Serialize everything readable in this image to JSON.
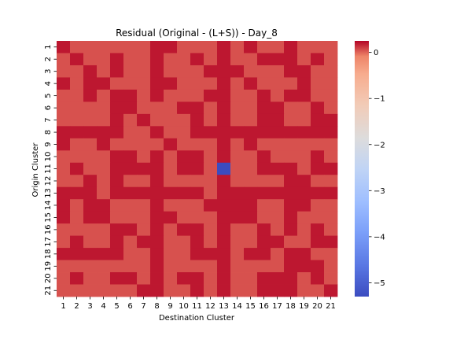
{
  "chart_data": {
    "type": "heatmap",
    "title": "Residual (Original - (L+S)) - Day_8",
    "xlabel": "Destination Cluster",
    "ylabel": "Origin Cluster",
    "x_categories": [
      "1",
      "2",
      "3",
      "4",
      "5",
      "6",
      "7",
      "8",
      "9",
      "10",
      "11",
      "12",
      "13",
      "14",
      "15",
      "16",
      "17",
      "18",
      "19",
      "20",
      "21"
    ],
    "y_categories": [
      "1",
      "2",
      "3",
      "4",
      "5",
      "6",
      "7",
      "8",
      "9",
      "10",
      "11",
      "12",
      "13",
      "14",
      "15",
      "16",
      "17",
      "18",
      "19",
      "20",
      "21"
    ],
    "colormap": "coolwarm",
    "vmin": -5.3,
    "vmax": 0.25,
    "colorbar_ticks": [
      0,
      -1,
      -2,
      -3,
      -4,
      -5
    ],
    "colorbar_tick_labels": [
      "0",
      "−1",
      "−2",
      "−3",
      "−4",
      "−5"
    ],
    "values": [
      [
        0.2,
        0.05,
        0.05,
        0.05,
        0.05,
        0.05,
        0.05,
        0.2,
        0.2,
        0.05,
        0.05,
        0.05,
        0.2,
        0.05,
        0.2,
        0.05,
        0.05,
        0.2,
        0.05,
        0.05,
        0.05
      ],
      [
        0.05,
        0.2,
        0.05,
        0.05,
        0.2,
        0.05,
        0.05,
        0.2,
        0.05,
        0.05,
        0.2,
        0.05,
        0.2,
        0.05,
        0.05,
        0.2,
        0.2,
        0.2,
        0.05,
        0.2,
        0.05
      ],
      [
        0.05,
        0.05,
        0.2,
        0.05,
        0.2,
        0.05,
        0.05,
        0.2,
        0.05,
        0.05,
        0.05,
        0.2,
        0.2,
        0.2,
        0.05,
        0.05,
        0.05,
        0.2,
        0.2,
        0.05,
        0.05
      ],
      [
        0.2,
        0.05,
        0.2,
        0.2,
        0.05,
        0.05,
        0.05,
        0.2,
        0.2,
        0.05,
        0.05,
        0.05,
        0.2,
        0.05,
        0.2,
        0.05,
        0.05,
        0.05,
        0.2,
        0.05,
        0.05
      ],
      [
        0.05,
        0.05,
        0.2,
        0.05,
        0.2,
        0.2,
        0.05,
        0.2,
        0.05,
        0.05,
        0.05,
        0.2,
        0.2,
        0.05,
        0.05,
        0.2,
        0.05,
        0.2,
        0.2,
        0.05,
        0.05
      ],
      [
        0.05,
        0.05,
        0.05,
        0.05,
        0.2,
        0.2,
        0.05,
        0.05,
        0.05,
        0.2,
        0.2,
        0.05,
        0.2,
        0.05,
        0.05,
        0.2,
        0.2,
        0.05,
        0.05,
        0.2,
        0.05
      ],
      [
        0.05,
        0.05,
        0.05,
        0.05,
        0.2,
        0.05,
        0.2,
        0.05,
        0.05,
        0.05,
        0.2,
        0.05,
        0.2,
        0.05,
        0.05,
        0.2,
        0.2,
        0.05,
        0.05,
        0.2,
        0.2
      ],
      [
        0.2,
        0.2,
        0.2,
        0.2,
        0.2,
        0.05,
        0.05,
        0.2,
        0.05,
        0.05,
        0.2,
        0.2,
        0.2,
        0.2,
        0.2,
        0.2,
        0.2,
        0.2,
        0.2,
        0.2,
        0.2
      ],
      [
        0.2,
        0.05,
        0.05,
        0.2,
        0.05,
        0.05,
        0.05,
        0.05,
        0.2,
        0.05,
        0.05,
        0.05,
        0.2,
        0.05,
        0.2,
        0.05,
        0.05,
        0.05,
        0.05,
        0.05,
        0.05
      ],
      [
        0.05,
        0.05,
        0.05,
        0.05,
        0.2,
        0.2,
        0.05,
        0.2,
        0.05,
        0.2,
        0.2,
        0.05,
        0.2,
        0.05,
        0.05,
        0.2,
        0.05,
        0.05,
        0.05,
        0.2,
        0.05
      ],
      [
        0.05,
        0.2,
        0.05,
        0.05,
        0.2,
        0.2,
        0.2,
        0.2,
        0.05,
        0.2,
        0.2,
        0.05,
        -5.3,
        0.05,
        0.05,
        0.2,
        0.2,
        0.2,
        0.05,
        0.2,
        0.2
      ],
      [
        0.05,
        0.05,
        0.2,
        0.05,
        0.2,
        0.05,
        0.05,
        0.2,
        0.05,
        0.05,
        0.05,
        0.05,
        0.2,
        0.05,
        0.05,
        0.05,
        0.05,
        0.2,
        0.2,
        0.05,
        0.05
      ],
      [
        0.2,
        0.2,
        0.2,
        0.05,
        0.2,
        0.2,
        0.2,
        0.2,
        0.2,
        0.2,
        0.2,
        0.05,
        0.2,
        0.2,
        0.2,
        0.2,
        0.2,
        0.2,
        0.2,
        0.2,
        0.2
      ],
      [
        0.2,
        0.05,
        0.2,
        0.2,
        0.05,
        0.05,
        0.05,
        0.2,
        0.05,
        0.05,
        0.05,
        0.2,
        0.2,
        0.2,
        0.2,
        0.05,
        0.05,
        0.2,
        0.2,
        0.05,
        0.05
      ],
      [
        0.2,
        0.05,
        0.2,
        0.2,
        0.05,
        0.05,
        0.05,
        0.2,
        0.2,
        0.05,
        0.05,
        0.05,
        0.2,
        0.2,
        0.2,
        0.05,
        0.05,
        0.2,
        0.05,
        0.05,
        0.05
      ],
      [
        0.05,
        0.05,
        0.05,
        0.05,
        0.2,
        0.2,
        0.05,
        0.2,
        0.05,
        0.2,
        0.2,
        0.05,
        0.2,
        0.05,
        0.05,
        0.2,
        0.05,
        0.2,
        0.05,
        0.2,
        0.05
      ],
      [
        0.05,
        0.2,
        0.05,
        0.05,
        0.2,
        0.05,
        0.2,
        0.2,
        0.05,
        0.05,
        0.2,
        0.05,
        0.2,
        0.05,
        0.05,
        0.2,
        0.2,
        0.05,
        0.05,
        0.2,
        0.2
      ],
      [
        0.2,
        0.2,
        0.2,
        0.2,
        0.2,
        0.05,
        0.05,
        0.2,
        0.05,
        0.05,
        0.2,
        0.2,
        0.2,
        0.05,
        0.2,
        0.2,
        0.05,
        0.2,
        0.2,
        0.05,
        0.05
      ],
      [
        0.05,
        0.05,
        0.05,
        0.05,
        0.05,
        0.05,
        0.05,
        0.2,
        0.05,
        0.05,
        0.05,
        0.05,
        0.2,
        0.05,
        0.05,
        0.05,
        0.05,
        0.2,
        0.2,
        0.2,
        0.05
      ],
      [
        0.05,
        0.2,
        0.05,
        0.05,
        0.2,
        0.2,
        0.05,
        0.2,
        0.05,
        0.2,
        0.2,
        0.05,
        0.2,
        0.05,
        0.05,
        0.2,
        0.2,
        0.2,
        0.05,
        0.2,
        0.05
      ],
      [
        0.05,
        0.05,
        0.05,
        0.05,
        0.05,
        0.05,
        0.2,
        0.2,
        0.05,
        0.05,
        0.2,
        0.05,
        0.2,
        0.05,
        0.05,
        0.2,
        0.2,
        0.2,
        0.05,
        0.05,
        0.2
      ]
    ]
  }
}
